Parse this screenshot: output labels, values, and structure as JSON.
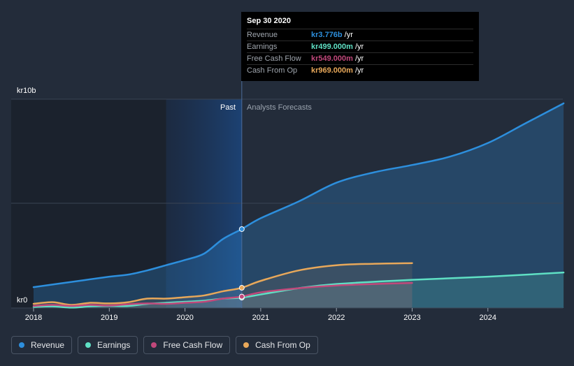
{
  "colors": {
    "revenue": "#2d8fdd",
    "earnings": "#5fe0c4",
    "free_cash_flow": "#c1487b",
    "cash_from_op": "#e8a85a",
    "background": "#232c3a"
  },
  "chart_data": {
    "type": "line",
    "y_axis_top_label": "kr10b",
    "y_axis_bottom_label": "kr0",
    "ylim": [
      0,
      10
    ],
    "xlim": [
      2018.0,
      2025.0
    ],
    "x_ticks": [
      "2018",
      "2019",
      "2020",
      "2021",
      "2022",
      "2023",
      "2024"
    ],
    "past_label": "Past",
    "forecast_label": "Analysts Forecasts",
    "divider_x": 2020.75,
    "highlight_start_x": 2019.75,
    "series": [
      {
        "name": "Revenue",
        "color_key": "revenue",
        "x": [
          2018.0,
          2018.5,
          2019.0,
          2019.25,
          2019.5,
          2019.75,
          2020.0,
          2020.25,
          2020.5,
          2020.75,
          2021.0,
          2021.5,
          2022.0,
          2022.5,
          2023.0,
          2023.5,
          2024.0,
          2024.5,
          2025.0
        ],
        "y": [
          1.0,
          1.25,
          1.5,
          1.6,
          1.8,
          2.05,
          2.3,
          2.6,
          3.3,
          3.78,
          4.3,
          5.1,
          6.0,
          6.5,
          6.85,
          7.25,
          7.9,
          8.85,
          9.8
        ]
      },
      {
        "name": "Earnings",
        "color_key": "earnings",
        "x": [
          2018.0,
          2018.25,
          2018.5,
          2018.75,
          2019.0,
          2019.25,
          2019.5,
          2019.75,
          2020.0,
          2020.25,
          2020.5,
          2020.75,
          2021.0,
          2021.5,
          2022.0,
          2023.0,
          2024.0,
          2025.0
        ],
        "y": [
          0.05,
          0.08,
          0.02,
          0.08,
          0.1,
          0.1,
          0.2,
          0.25,
          0.3,
          0.35,
          0.45,
          0.499,
          0.65,
          0.95,
          1.15,
          1.35,
          1.5,
          1.7
        ]
      },
      {
        "name": "Free Cash Flow",
        "color_key": "free_cash_flow",
        "x": [
          2018.0,
          2018.25,
          2018.5,
          2018.75,
          2019.0,
          2019.25,
          2019.5,
          2019.75,
          2020.0,
          2020.25,
          2020.5,
          2020.75,
          2021.0,
          2021.5,
          2022.0,
          2022.5,
          2023.0
        ],
        "y": [
          0.1,
          0.15,
          0.1,
          0.15,
          0.12,
          0.18,
          0.22,
          0.2,
          0.25,
          0.3,
          0.45,
          0.549,
          0.75,
          0.95,
          1.08,
          1.15,
          1.2
        ]
      },
      {
        "name": "Cash From Op",
        "color_key": "cash_from_op",
        "x": [
          2018.0,
          2018.25,
          2018.5,
          2018.75,
          2019.0,
          2019.25,
          2019.5,
          2019.75,
          2020.0,
          2020.25,
          2020.5,
          2020.75,
          2021.0,
          2021.5,
          2022.0,
          2022.5,
          2023.0
        ],
        "y": [
          0.2,
          0.28,
          0.15,
          0.25,
          0.22,
          0.28,
          0.45,
          0.45,
          0.52,
          0.6,
          0.8,
          0.969,
          1.3,
          1.8,
          2.05,
          2.12,
          2.15
        ]
      }
    ]
  },
  "tooltip": {
    "date": "Sep 30 2020",
    "unit": "/yr",
    "rows": [
      {
        "label": "Revenue",
        "value": "kr3.776b",
        "color_key": "revenue"
      },
      {
        "label": "Earnings",
        "value": "kr499.000m",
        "color_key": "earnings"
      },
      {
        "label": "Free Cash Flow",
        "value": "kr549.000m",
        "color_key": "free_cash_flow"
      },
      {
        "label": "Cash From Op",
        "value": "kr969.000m",
        "color_key": "cash_from_op"
      }
    ]
  },
  "legend": [
    {
      "label": "Revenue",
      "color_key": "revenue"
    },
    {
      "label": "Earnings",
      "color_key": "earnings"
    },
    {
      "label": "Free Cash Flow",
      "color_key": "free_cash_flow"
    },
    {
      "label": "Cash From Op",
      "color_key": "cash_from_op"
    }
  ]
}
